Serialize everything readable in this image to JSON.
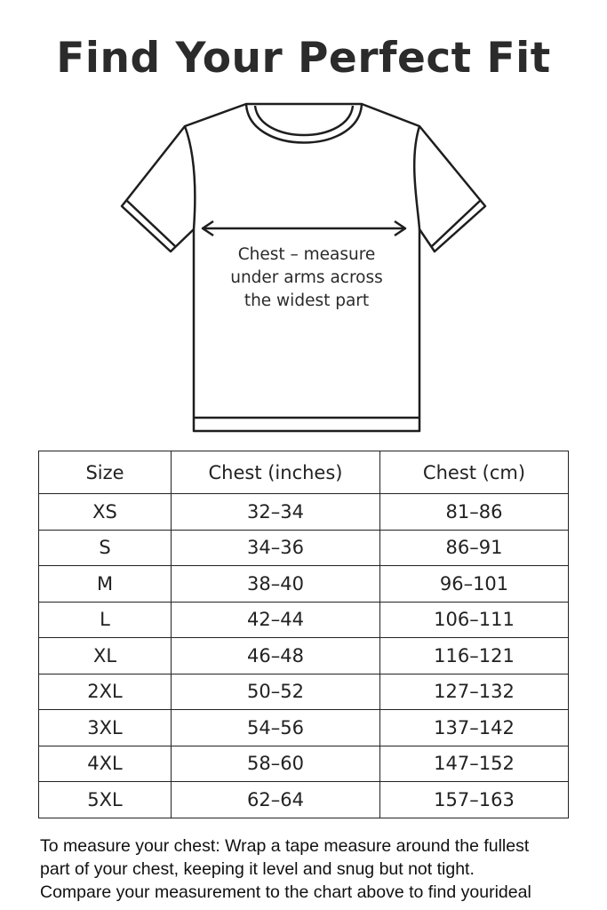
{
  "title": "Find Your Perfect Fit",
  "illustration": {
    "icon": "t-shirt-outline",
    "chest_label": [
      "Chest – measure",
      "under arms across",
      "the widest part"
    ]
  },
  "table": {
    "headers": [
      "Size",
      "Chest (inches)",
      "Chest (cm)"
    ],
    "rows": [
      [
        "XS",
        "32–34",
        "81–86"
      ],
      [
        "S",
        "34–36",
        "86–91"
      ],
      [
        "M",
        "38–40",
        "96–101"
      ],
      [
        "L",
        "42–44",
        "106–111"
      ],
      [
        "XL",
        "46–48",
        "116–121"
      ],
      [
        "2XL",
        "50–52",
        "127–132"
      ],
      [
        "3XL",
        "54–56",
        "137–142"
      ],
      [
        "4XL",
        "58–60",
        "147–152"
      ],
      [
        "5XL",
        "62–64",
        "157–163"
      ]
    ]
  },
  "note": [
    "To measure your chest: Wrap a tape measure around the fullest",
    "part of your chest, keeping it level and snug but not tight.",
    "Compare your measurement to the chart above to find yourideal"
  ]
}
